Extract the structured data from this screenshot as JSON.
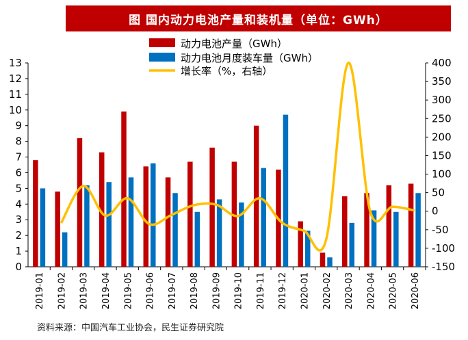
{
  "title": "图 国内动力电池产量和装机量（单位：GWh）",
  "source": "资料来源：中国汽车工业协会，民生证券研究院",
  "colors": {
    "production": "#c00000",
    "installed": "#0070c0",
    "growth": "#ffc000",
    "title_bg": "#c00000"
  },
  "chart_data": {
    "type": "bar",
    "categories": [
      "2019-01",
      "2019-02",
      "2019-03",
      "2019-04",
      "2019-05",
      "2019-06",
      "2019-07",
      "2019-08",
      "2019-09",
      "2019-10",
      "2019-11",
      "2019-12",
      "2020-01",
      "2020-02",
      "2020-03",
      "2020-04",
      "2020-05",
      "2020-06"
    ],
    "series": [
      {
        "name": "动力电池产量（GWh）",
        "type": "bar",
        "axis": "left",
        "values": [
          6.8,
          4.8,
          8.2,
          7.3,
          9.9,
          6.4,
          5.7,
          6.7,
          7.6,
          6.7,
          9.0,
          6.2,
          2.9,
          0.9,
          4.5,
          4.7,
          5.2,
          5.3
        ]
      },
      {
        "name": "动力电池月度装车量（GWh）",
        "type": "bar",
        "axis": "left",
        "values": [
          5.0,
          2.2,
          5.2,
          5.4,
          5.7,
          6.6,
          4.7,
          3.5,
          4.3,
          4.1,
          6.3,
          9.7,
          2.3,
          0.6,
          2.8,
          3.6,
          3.5,
          4.7
        ]
      },
      {
        "name": "增长率（%，右轴）",
        "type": "line",
        "axis": "right",
        "values": [
          null,
          -32,
          68,
          -12,
          35,
          -35,
          -10,
          16,
          18,
          -13,
          35,
          -31,
          -53,
          -76,
          400,
          -2,
          12,
          2
        ]
      }
    ],
    "y_left": {
      "min": 0,
      "max": 13,
      "ticks": [
        0,
        1,
        2,
        3,
        4,
        5,
        6,
        7,
        8,
        9,
        10,
        11,
        12,
        13
      ]
    },
    "y_right": {
      "min": -150,
      "max": 400,
      "ticks": [
        -150,
        -100,
        -50,
        0,
        50,
        100,
        150,
        200,
        250,
        300,
        350,
        400
      ]
    },
    "legend_position": "top-center"
  }
}
